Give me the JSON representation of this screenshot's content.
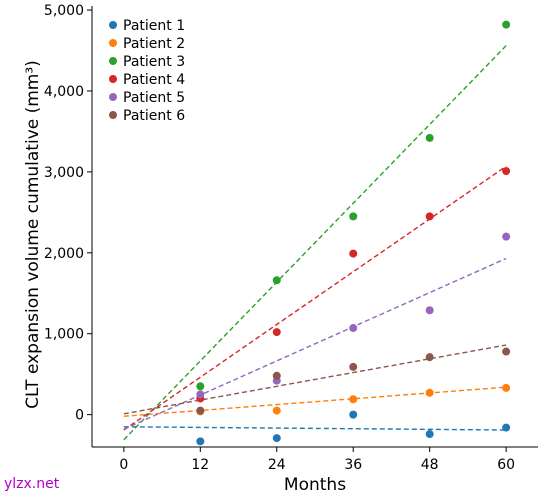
{
  "chart_data": {
    "type": "scatter",
    "title": "",
    "xlabel": "Months",
    "ylabel": "CLT expansion volume cumulative (mm³)",
    "xlim": [
      -5,
      65
    ],
    "ylim": [
      -400,
      5050
    ],
    "xticks": [
      0,
      12,
      24,
      36,
      48,
      60
    ],
    "yticks": [
      0,
      1000,
      2000,
      3000,
      4000,
      5000
    ],
    "ytick_labels": [
      "0",
      "1,000",
      "2,000",
      "3,000",
      "4,000",
      "5,000"
    ],
    "legend_position": "top-left",
    "trendlines": "dashed linear fit per series",
    "series": [
      {
        "name": "Patient 1",
        "color": "#1f77b4",
        "x": [
          12,
          24,
          36,
          48,
          60
        ],
        "y": [
          -330,
          -290,
          0,
          -240,
          -160
        ],
        "fit": [
          [
            0,
            -150
          ],
          [
            60,
            -190
          ]
        ]
      },
      {
        "name": "Patient 2",
        "color": "#ff7f0e",
        "x": [
          12,
          24,
          36,
          48,
          60
        ],
        "y": [
          40,
          50,
          190,
          270,
          330
        ],
        "fit": [
          [
            0,
            -20
          ],
          [
            60,
            340
          ]
        ]
      },
      {
        "name": "Patient 3",
        "color": "#2ca02c",
        "x": [
          12,
          24,
          36,
          48,
          60
        ],
        "y": [
          350,
          1660,
          2450,
          3420,
          4820
        ],
        "fit": [
          [
            0,
            -310
          ],
          [
            60,
            4560
          ]
        ]
      },
      {
        "name": "Patient 4",
        "color": "#d62728",
        "x": [
          12,
          24,
          36,
          48,
          60
        ],
        "y": [
          200,
          1020,
          1990,
          2450,
          3010
        ],
        "fit": [
          [
            0,
            -190
          ],
          [
            60,
            3070
          ]
        ]
      },
      {
        "name": "Patient 5",
        "color": "#9467bd",
        "x": [
          12,
          24,
          36,
          48,
          60
        ],
        "y": [
          250,
          420,
          1070,
          1290,
          2200
        ],
        "fit": [
          [
            0,
            -180
          ],
          [
            60,
            1930
          ]
        ]
      },
      {
        "name": "Patient 6",
        "color": "#8c564b",
        "x": [
          12,
          24,
          36,
          48,
          60
        ],
        "y": [
          50,
          480,
          590,
          710,
          780
        ],
        "fit": [
          [
            0,
            10
          ],
          [
            60,
            860
          ]
        ]
      }
    ]
  },
  "watermark": "ylzx.net"
}
